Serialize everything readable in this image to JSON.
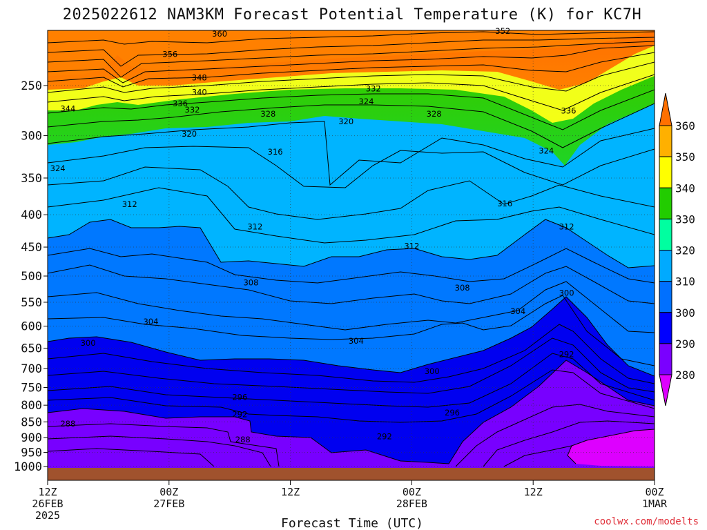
{
  "title": "2025022612 NAM3KM Forecast Potential Temperature (K) for KC7H",
  "xlabel": "Forecast Time (UTC)",
  "credit": "coolwx.com/modelts",
  "chart_data": {
    "type": "heatmap",
    "title": "2025022612 NAM3KM Forecast Potential Temperature (K) for KC7H",
    "xlabel": "Forecast Time (UTC)",
    "ylabel": "",
    "y_scale": "log-pressure (inverted)",
    "y_ticks": [
      250,
      300,
      350,
      400,
      450,
      500,
      550,
      600,
      650,
      700,
      750,
      800,
      850,
      900,
      950,
      1000
    ],
    "x_ticks": [
      {
        "hour": 0,
        "lines": [
          "12Z",
          "26FEB",
          "2025"
        ]
      },
      {
        "hour": 12,
        "lines": [
          "00Z",
          "27FEB"
        ]
      },
      {
        "hour": 24,
        "lines": [
          "12Z"
        ]
      },
      {
        "hour": 36,
        "lines": [
          "00Z",
          "28FEB"
        ]
      },
      {
        "hour": 48,
        "lines": [
          "12Z"
        ]
      },
      {
        "hour": 60,
        "lines": [
          "00Z",
          "1MAR"
        ]
      }
    ],
    "x_range_hours": [
      0,
      60
    ],
    "colorbar": {
      "levels": [
        280,
        290,
        300,
        310,
        320,
        330,
        340,
        350,
        360
      ],
      "colors": [
        "#dd00ff",
        "#7a00ff",
        "#0000ff",
        "#0070ff",
        "#00aaff",
        "#00ffa0",
        "#22cc00",
        "#ffff00",
        "#ffb000",
        "#ff7000"
      ]
    },
    "contour_labels": [
      {
        "text": "360",
        "hour": 17.0,
        "p": 207
      },
      {
        "text": "352",
        "hour": 45.0,
        "p": 205
      },
      {
        "text": "356",
        "hour": 12.1,
        "p": 223
      },
      {
        "text": "348",
        "hour": 15.0,
        "p": 243
      },
      {
        "text": "340",
        "hour": 15.0,
        "p": 256
      },
      {
        "text": "336",
        "hour": 13.1,
        "p": 267
      },
      {
        "text": "332",
        "hour": 14.3,
        "p": 273
      },
      {
        "text": "332",
        "hour": 32.2,
        "p": 253
      },
      {
        "text": "324",
        "hour": 31.5,
        "p": 265
      },
      {
        "text": "344",
        "hour": 2.0,
        "p": 272
      },
      {
        "text": "328",
        "hour": 21.8,
        "p": 277
      },
      {
        "text": "328",
        "hour": 38.2,
        "p": 277
      },
      {
        "text": "336",
        "hour": 51.5,
        "p": 274
      },
      {
        "text": "320",
        "hour": 29.5,
        "p": 285
      },
      {
        "text": "320",
        "hour": 14.0,
        "p": 298
      },
      {
        "text": "316",
        "hour": 22.5,
        "p": 318
      },
      {
        "text": "324",
        "hour": 49.3,
        "p": 317
      },
      {
        "text": "324",
        "hour": 1.0,
        "p": 338
      },
      {
        "text": "312",
        "hour": 8.1,
        "p": 385
      },
      {
        "text": "316",
        "hour": 45.2,
        "p": 384
      },
      {
        "text": "312",
        "hour": 20.5,
        "p": 418
      },
      {
        "text": "312",
        "hour": 51.3,
        "p": 418
      },
      {
        "text": "312",
        "hour": 36.0,
        "p": 448
      },
      {
        "text": "308",
        "hour": 20.1,
        "p": 512
      },
      {
        "text": "308",
        "hour": 41.0,
        "p": 522
      },
      {
        "text": "300",
        "hour": 51.3,
        "p": 532
      },
      {
        "text": "304",
        "hour": 10.2,
        "p": 590
      },
      {
        "text": "304",
        "hour": 46.5,
        "p": 568
      },
      {
        "text": "300",
        "hour": 4.0,
        "p": 638
      },
      {
        "text": "304",
        "hour": 30.5,
        "p": 633
      },
      {
        "text": "292",
        "hour": 51.3,
        "p": 665
      },
      {
        "text": "300",
        "hour": 38.0,
        "p": 707
      },
      {
        "text": "296",
        "hour": 19.0,
        "p": 777
      },
      {
        "text": "292",
        "hour": 19.0,
        "p": 827
      },
      {
        "text": "296",
        "hour": 40.0,
        "p": 822
      },
      {
        "text": "288",
        "hour": 2.0,
        "p": 856
      },
      {
        "text": "288",
        "hour": 19.3,
        "p": 907
      },
      {
        "text": "292",
        "hour": 33.3,
        "p": 896
      }
    ]
  }
}
